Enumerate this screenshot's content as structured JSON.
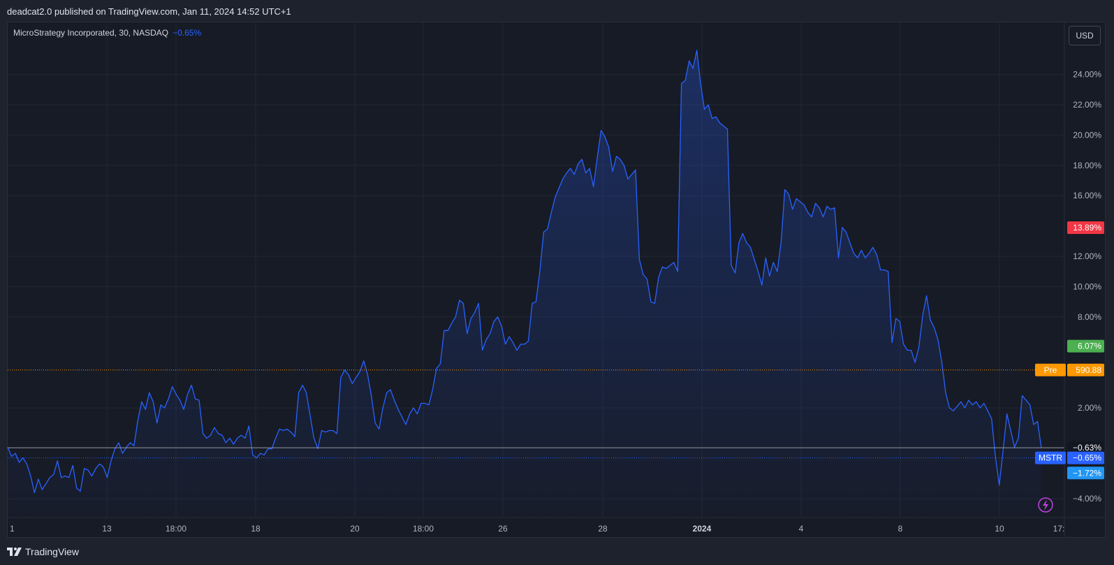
{
  "header": {
    "publish_text": "deadcat2.0 published on TradingView.com, Jan 11, 2024 14:52 UTC+1"
  },
  "legend": {
    "symbol_text": "MicroStrategy Incorporated, 30, NASDAQ",
    "change_text": "−0.65%"
  },
  "currency_button": "USD",
  "footer": {
    "brand": "TradingView"
  },
  "colors": {
    "line": "#2962ff",
    "background": "#171b26",
    "pre_line": "#ff9800",
    "high_badge": "#f23645",
    "low_badge": "#4caf50",
    "cyan_badge": "#2196f3"
  },
  "chart_data": {
    "type": "area",
    "ylabel": "",
    "xlabel": "",
    "yscale": "percent",
    "ylim": [
      -4.7,
      27
    ],
    "yticks": [
      "24.00%",
      "22.00%",
      "20.00%",
      "18.00%",
      "16.00%",
      "12.00%",
      "10.00%",
      "8.00%",
      "2.00%",
      "−4.00%"
    ],
    "ytick_values": [
      24,
      22,
      20,
      18,
      16,
      12,
      10,
      8,
      2,
      -4
    ],
    "xticks": [
      {
        "label": "1",
        "bold": false
      },
      {
        "label": "13",
        "bold": false
      },
      {
        "label": "18:00",
        "bold": false
      },
      {
        "label": "18",
        "bold": false
      },
      {
        "label": "20",
        "bold": false
      },
      {
        "label": "18:00",
        "bold": false
      },
      {
        "label": "26",
        "bold": false
      },
      {
        "label": "28",
        "bold": false
      },
      {
        "label": "2024",
        "bold": true
      },
      {
        "label": "4",
        "bold": false
      },
      {
        "label": "8",
        "bold": false
      },
      {
        "label": "10",
        "bold": false
      },
      {
        "label": "17:",
        "bold": false
      }
    ],
    "grid": true,
    "series": [
      {
        "symbol": "MSTR",
        "values": [
          -0.6,
          -1.2,
          -1.0,
          -1.6,
          -1.3,
          -1.7,
          -2.5,
          -3.6,
          -2.7,
          -3.4,
          -3.0,
          -2.6,
          -2.4,
          -1.5,
          -2.6,
          -2.5,
          -2.6,
          -1.8,
          -3.3,
          -3.5,
          -2.0,
          -2.1,
          -2.5,
          -2.0,
          -1.7,
          -1.9,
          -2.6,
          -1.5,
          -0.7,
          -0.3,
          -1.0,
          -0.6,
          -0.3,
          -0.5,
          1.2,
          2.4,
          1.9,
          3.0,
          2.4,
          1.0,
          2.2,
          2.0,
          2.6,
          3.4,
          2.9,
          2.5,
          1.9,
          2.9,
          3.5,
          2.6,
          2.5,
          0.3,
          0.0,
          0.2,
          0.7,
          0.3,
          0.2,
          -0.3,
          0.0,
          -0.4,
          0.0,
          0.2,
          0.0,
          0.8,
          -1.1,
          -1.3,
          -1.0,
          -1.1,
          -0.7,
          -0.7,
          0.0,
          0.6,
          0.5,
          0.6,
          0.4,
          0.1,
          3.0,
          3.5,
          3.0,
          1.5,
          0.0,
          -0.7,
          0.5,
          0.4,
          0.5,
          0.5,
          0.3,
          4.0,
          4.5,
          4.2,
          3.6,
          4.0,
          4.4,
          5.1,
          4.2,
          2.8,
          1.0,
          0.6,
          2.0,
          3.0,
          3.2,
          2.5,
          1.9,
          1.4,
          0.9,
          1.6,
          2.0,
          1.6,
          2.3,
          2.3,
          2.2,
          3.2,
          4.6,
          4.9,
          7.1,
          7.1,
          7.6,
          8.0,
          9.1,
          8.9,
          6.9,
          7.9,
          8.3,
          8.9,
          5.8,
          6.5,
          6.9,
          7.7,
          8.0,
          7.4,
          6.2,
          6.7,
          6.3,
          5.8,
          6.2,
          6.2,
          6.4,
          8.9,
          9.0,
          11.0,
          13.6,
          13.8,
          14.9,
          15.9,
          16.5,
          17.1,
          17.5,
          17.8,
          17.4,
          18.1,
          18.4,
          17.5,
          17.8,
          16.6,
          18.5,
          20.3,
          19.9,
          19.2,
          17.6,
          18.6,
          18.4,
          18.0,
          17.1,
          17.4,
          17.7,
          11.8,
          10.8,
          10.5,
          9.0,
          8.9,
          10.6,
          11.3,
          11.2,
          11.4,
          11.6,
          11.0,
          23.4,
          23.6,
          24.9,
          24.4,
          25.6,
          23.4,
          21.7,
          22.0,
          21.1,
          21.2,
          20.8,
          20.6,
          20.4,
          11.4,
          10.9,
          12.9,
          13.5,
          12.9,
          12.6,
          11.8,
          11.0,
          10.1,
          11.9,
          10.7,
          11.6,
          11.0,
          12.9,
          16.4,
          16.1,
          15.1,
          15.8,
          15.6,
          15.4,
          14.9,
          14.6,
          15.5,
          15.2,
          14.6,
          15.3,
          15.1,
          15.2,
          11.9,
          13.9,
          13.6,
          12.9,
          12.2,
          11.9,
          12.4,
          11.9,
          12.2,
          12.6,
          12.1,
          11.1,
          11.1,
          11.0,
          6.3,
          7.9,
          7.7,
          6.2,
          5.8,
          5.8,
          5.0,
          6.0,
          8.1,
          9.4,
          7.8,
          7.3,
          6.5,
          5.0,
          3.0,
          2.0,
          1.8,
          2.1,
          2.4,
          2.0,
          2.5,
          2.2,
          2.4,
          2.0,
          2.3,
          1.8,
          1.3,
          -1.2,
          -3.1,
          -0.8,
          1.6,
          0.5,
          -0.6,
          0.0,
          2.8,
          2.5,
          2.2,
          0.9,
          1.1,
          -0.65
        ]
      }
    ],
    "markers": {
      "high": {
        "label": "13.89%",
        "value": 13.89
      },
      "low": {
        "label": "6.07%",
        "value": 6.07
      },
      "pre": {
        "tag": "Pre",
        "label": "590.88",
        "value": 4.5
      },
      "baseline": {
        "label": "−0.63%",
        "value": -0.63
      },
      "last": {
        "tag": "MSTR",
        "label": "−0.65%",
        "value": -1.3
      },
      "third": {
        "label": "−1.72%",
        "value": -2.3
      }
    }
  }
}
